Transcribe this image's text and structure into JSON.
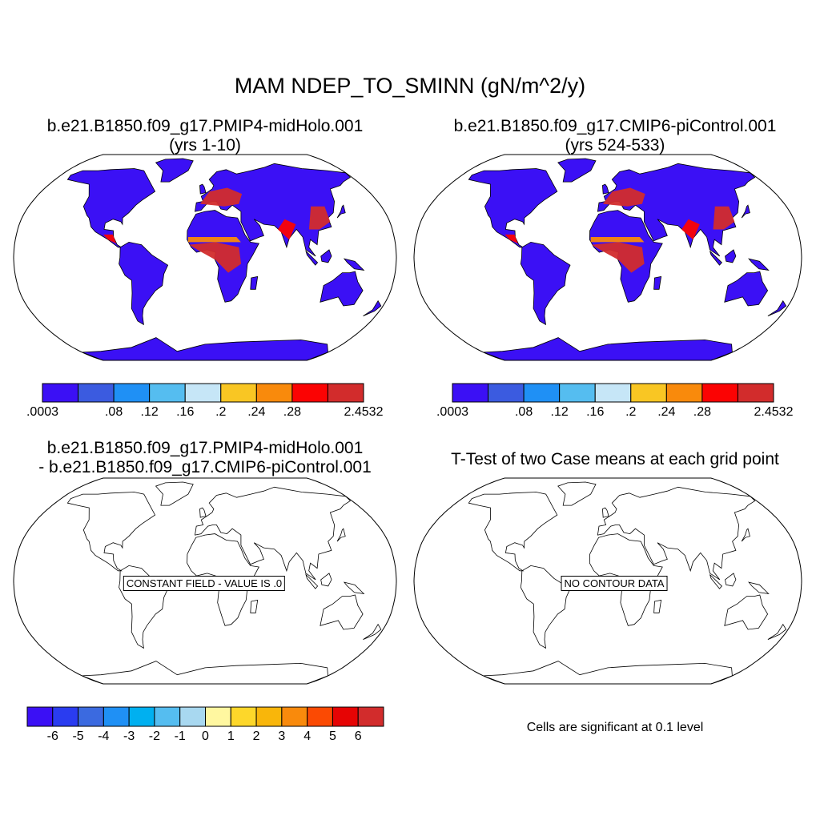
{
  "main_title": "MAM NDEP_TO_SMINN (gN/m^2/y)",
  "panels": {
    "top_left": {
      "title_line1": "b.e21.B1850.f09_g17.PMIP4-midHolo.001",
      "title_line2": "(yrs 1-10)"
    },
    "top_right": {
      "title_line1": "b.e21.B1850.f09_g17.CMIP6-piControl.001",
      "title_line2": "(yrs 524-533)"
    },
    "bottom_left": {
      "title_line1": "b.e21.B1850.f09_g17.PMIP4-midHolo.001",
      "title_line2": "- b.e21.B1850.f09_g17.CMIP6-piControl.001",
      "message": "CONSTANT FIELD - VALUE IS .0"
    },
    "bottom_right": {
      "title_line1": "T-Test of two Case means at each grid point",
      "message": "NO CONTOUR DATA",
      "note": "Cells are significant at 0.1 level"
    }
  },
  "colorbar_abs": {
    "colors": [
      "#3b10f5",
      "#3b5be0",
      "#1f90f5",
      "#55bdf0",
      "#c6e6f7",
      "#f9c623",
      "#f98a0c",
      "#fb0303",
      "#d22c2c"
    ],
    "labels": [
      ".0003",
      ".08",
      ".12",
      ".16",
      ".2",
      ".24",
      ".28",
      "2.4532"
    ]
  },
  "colorbar_diff": {
    "colors": [
      "#3b10f5",
      "#2a3cf0",
      "#3b6ae0",
      "#1f90f5",
      "#00b0f0",
      "#55bdf0",
      "#a8d8f0",
      "#fff7a0",
      "#fdd72a",
      "#f9b60a",
      "#f98a0c",
      "#fb4a03",
      "#e60404",
      "#d22c2c"
    ],
    "labels": [
      "-6",
      "-5",
      "-4",
      "-3",
      "-2",
      "-1",
      "0",
      "1",
      "2",
      "3",
      "4",
      "5",
      "6"
    ]
  }
}
